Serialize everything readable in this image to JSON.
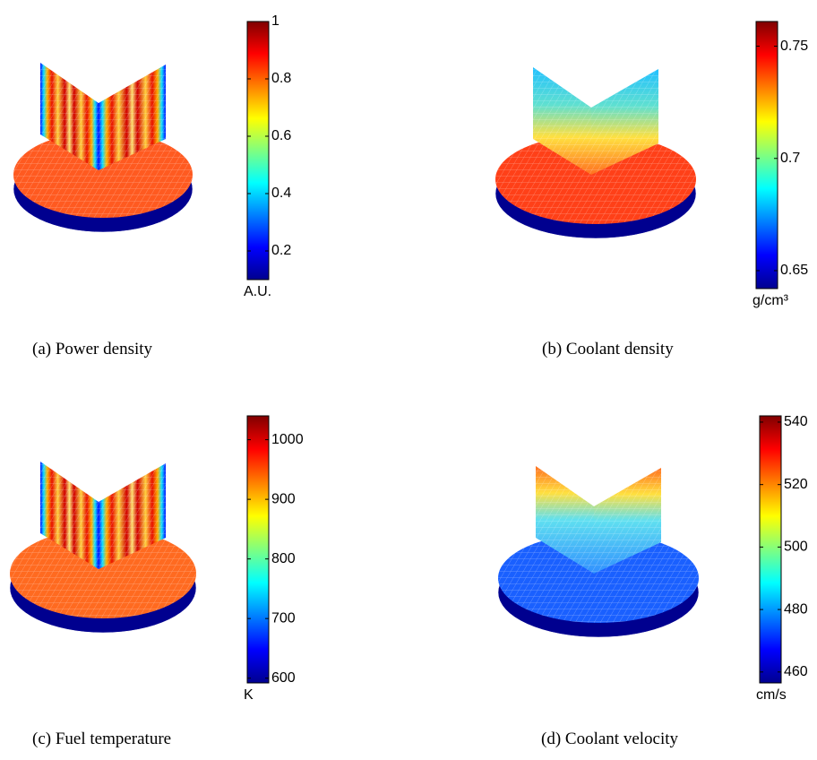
{
  "figures": [
    {
      "caption": "(a)  Power density",
      "colorbar": {
        "lim": [
          0.1,
          1
        ],
        "ticks": [
          0.2,
          0.4,
          0.6,
          0.8,
          1
        ],
        "unit": "A.U."
      }
    },
    {
      "caption": "(b)  Coolant density",
      "colorbar": {
        "lim": [
          0.642,
          0.761
        ],
        "ticks": [
          0.65,
          0.7,
          0.75
        ],
        "unit": "g/cm³"
      }
    },
    {
      "caption": "(c)  Fuel temperature",
      "colorbar": {
        "lim": [
          592,
          1040
        ],
        "ticks": [
          600,
          700,
          800,
          900,
          1000
        ],
        "unit": "K"
      }
    },
    {
      "caption": "(d)  Coolant velocity",
      "colorbar": {
        "lim": [
          456.5,
          542
        ],
        "ticks": [
          460,
          480,
          500,
          520,
          540
        ],
        "unit": "cm/s"
      }
    }
  ]
}
